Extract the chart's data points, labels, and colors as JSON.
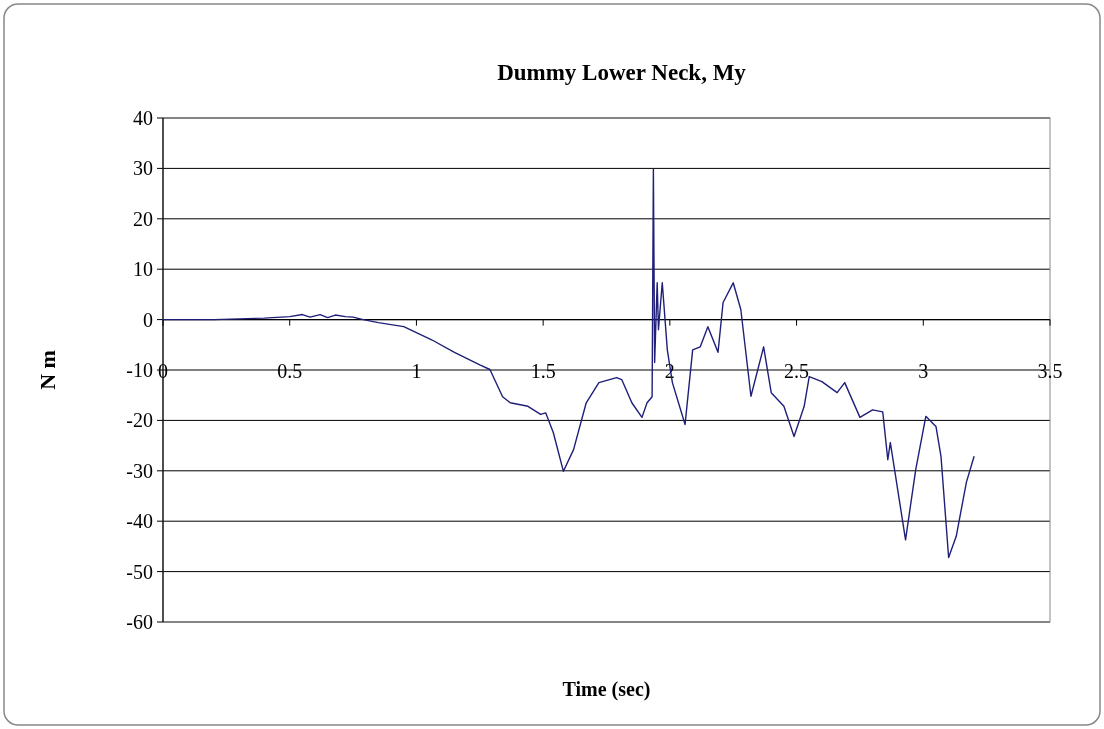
{
  "chart_data": {
    "type": "line",
    "title": "Dummy Lower Neck, My",
    "xlabel": "Time (sec)",
    "ylabel": "N m",
    "xlim": [
      0,
      3.5
    ],
    "xticks": [
      0,
      0.5,
      1,
      1.5,
      2,
      2.5,
      3,
      3.5
    ],
    "ylim": [
      -60,
      40
    ],
    "yticks": [
      -60,
      -50,
      -40,
      -30,
      -20,
      -10,
      0,
      10,
      20,
      30,
      40
    ],
    "grid": "y",
    "marker": "none",
    "line_style": "solid",
    "series": [
      {
        "color": "#1f1f7a",
        "x": [
          0,
          0.2,
          0.4,
          0.5,
          0.55,
          0.58,
          0.62,
          0.65,
          0.68,
          0.72,
          0.75,
          0.79,
          0.85,
          0.95,
          1.06,
          1.15,
          1.25,
          1.29,
          1.34,
          1.37,
          1.44,
          1.49,
          1.51,
          1.54,
          1.58,
          1.62,
          1.67,
          1.72,
          1.79,
          1.81,
          1.85,
          1.89,
          1.91,
          1.93,
          1.935,
          1.94,
          1.95,
          1.955,
          1.97,
          1.99,
          2.01,
          2.06,
          2.09,
          2.12,
          2.15,
          2.19,
          2.21,
          2.25,
          2.28,
          2.32,
          2.37,
          2.4,
          2.45,
          2.49,
          2.53,
          2.55,
          2.6,
          2.66,
          2.69,
          2.75,
          2.8,
          2.84,
          2.86,
          2.87,
          2.93,
          2.97,
          3.01,
          3.05,
          3.07,
          3.1,
          3.13,
          3.17,
          3.2
        ],
        "values": [
          0,
          0,
          0.3,
          0.6,
          1,
          0.5,
          1,
          0.4,
          0.9,
          0.6,
          0.5,
          0,
          -0.6,
          -1.4,
          -4,
          -6.5,
          -9,
          -9.9,
          -15.3,
          -16.5,
          -17.2,
          -18.8,
          -18.5,
          -22.4,
          -30.1,
          -25.8,
          -16.5,
          -12.5,
          -11.5,
          -11.9,
          -16.5,
          -19.4,
          -16.5,
          -15.3,
          29.8,
          -8.5,
          7.3,
          -2,
          7.3,
          -6,
          -12.5,
          -20.8,
          -6,
          -5.4,
          -1.4,
          -6.5,
          3.4,
          7.3,
          2,
          -15.2,
          -5.4,
          -14.5,
          -17.2,
          -23.2,
          -17.2,
          -11.3,
          -12.3,
          -14.5,
          -12.5,
          -19.4,
          -17.9,
          -18.3,
          -27.8,
          -24.4,
          -43.7,
          -29.8,
          -19.2,
          -21.2,
          -27.2,
          -47.2,
          -43,
          -32.3,
          -27.2
        ]
      }
    ]
  }
}
